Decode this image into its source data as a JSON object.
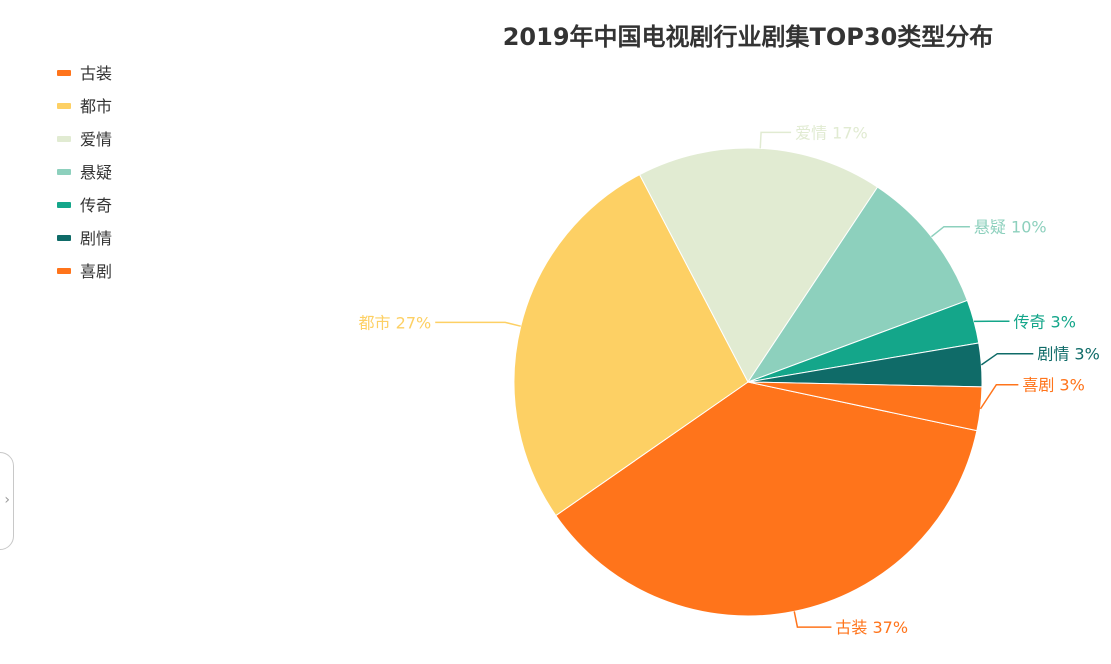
{
  "chart_data": {
    "type": "pie",
    "title": "2019年中国电视剧行业剧集TOP30类型分布",
    "categories": [
      "古装",
      "都市",
      "爱情",
      "悬疑",
      "传奇",
      "剧情",
      "喜剧"
    ],
    "values": [
      37,
      27,
      17,
      10,
      3,
      3,
      3
    ],
    "colors": [
      "#ff741b",
      "#fdd064",
      "#e1ebd2",
      "#8dd0bd",
      "#14a68a",
      "#0f6b68",
      "#ff741b"
    ],
    "slice_labels": [
      "古装 37%",
      "都市 27%",
      "爱情 17%",
      "悬疑 10%",
      "传奇 3%",
      "剧情 3%",
      "喜剧 3%"
    ],
    "label_colors": [
      "#ff741b",
      "#fdd064",
      "#e1ebd2",
      "#8dd0bd",
      "#14a68a",
      "#0f6b68",
      "#ff741b"
    ],
    "legend_position": "top-left"
  }
}
